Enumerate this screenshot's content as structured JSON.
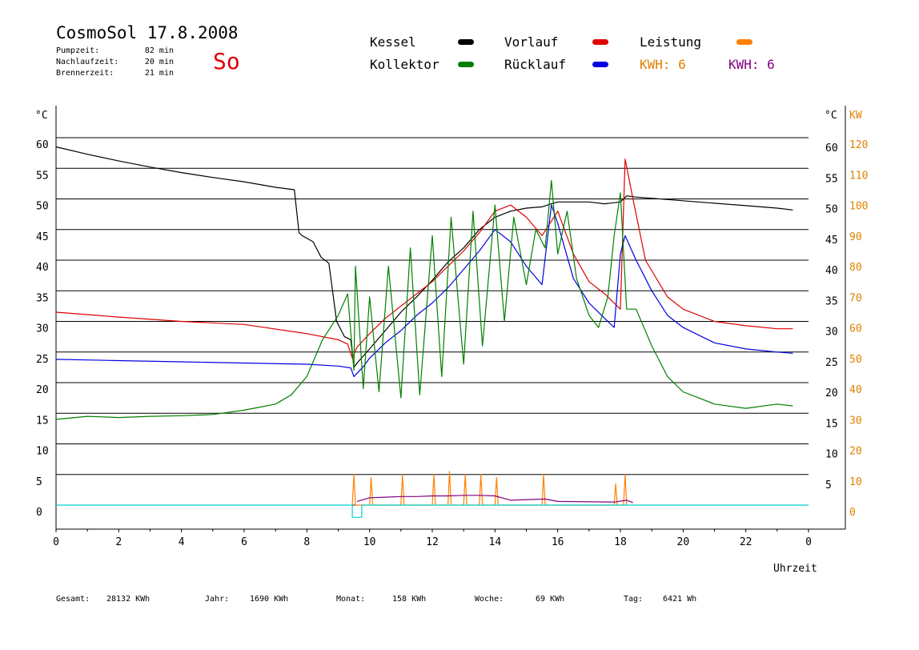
{
  "header": {
    "title": "CosmoSol 17.8.2008",
    "day": "So",
    "pump_label": "Pumpzeit:",
    "pump_value": "82 min",
    "nachlauf_label": "Nachlaufzeit:",
    "nachlauf_value": "20 min",
    "brenner_label": "Brennerzeit:",
    "brenner_value": "21 min"
  },
  "legend": {
    "kessel": "Kessel",
    "kollektor": "Kollektor",
    "vorlauf": "Vorlauf",
    "ruecklauf": "Rücklauf",
    "leistung": "Leistung",
    "kwh_orange": "KWH: 6",
    "kwh_purple": "KWH: 6",
    "colors": {
      "kessel": "#000000",
      "kollektor": "#008000",
      "vorlauf": "#e00000",
      "ruecklauf": "#0000e0",
      "leistung": "#ff8000",
      "kwh_purple": "#800080",
      "cyan": "#00d0d0"
    }
  },
  "footer": {
    "gesamt_label": "Gesamt:",
    "gesamt_value": "28132 KWh",
    "jahr_label": "Jahr:",
    "jahr_value": "1690 KWh",
    "monat_label": "Monat:",
    "monat_value": "158 KWh",
    "woche_label": "Woche:",
    "woche_value": "69 KWh",
    "tag_label": "Tag:",
    "tag_value": "6421 Wh"
  },
  "chart_data": {
    "type": "line",
    "xlabel": "Uhrzeit",
    "ylabel_left": "°C",
    "ylabel_right": "°C",
    "ylabel_right2": "KW",
    "xlim": [
      0,
      24
    ],
    "ylim": [
      0,
      60
    ],
    "y2lim": [
      0,
      120
    ],
    "grid": true,
    "x_ticks": [
      "0",
      "2",
      "4",
      "6",
      "8",
      "10",
      "12",
      "14",
      "16",
      "18",
      "20",
      "22",
      "0"
    ],
    "y_ticks": [
      "0",
      "5",
      "10",
      "15",
      "20",
      "25",
      "30",
      "35",
      "40",
      "45",
      "50",
      "55",
      "60"
    ],
    "y2_ticks": [
      "0",
      "10",
      "20",
      "30",
      "40",
      "50",
      "60",
      "70",
      "80",
      "90",
      "100",
      "110",
      "120"
    ],
    "series": [
      {
        "name": "Kessel",
        "color": "#000000",
        "x": [
          0,
          1,
          2,
          3,
          4,
          5,
          6,
          7,
          7.6,
          7.75,
          7.85,
          8.2,
          8.45,
          8.7,
          8.95,
          9.2,
          9.4,
          9.5,
          9.6,
          10,
          10.5,
          11,
          11.5,
          12,
          12.5,
          13,
          13.5,
          14,
          14.5,
          15,
          15.5,
          15.8,
          16,
          17,
          17.5,
          18,
          18.2,
          18.5,
          19,
          20,
          21,
          22,
          23,
          23.5
        ],
        "y": [
          58.5,
          57.3,
          56.2,
          55.2,
          54.3,
          53.5,
          52.8,
          51.9,
          51.5,
          44.5,
          44,
          43,
          40.5,
          39.5,
          30,
          27.5,
          27,
          22.5,
          23.2,
          25.5,
          28.5,
          31.5,
          34,
          36.7,
          39.7,
          42,
          45,
          47,
          48,
          48.5,
          48.7,
          49.2,
          49.5,
          49.5,
          49.2,
          49.5,
          50.5,
          50.3,
          50.1,
          49.7,
          49.3,
          48.9,
          48.5,
          48.2
        ]
      },
      {
        "name": "Vorlauf",
        "color": "#e00000",
        "x": [
          0,
          2,
          4,
          6,
          8,
          9,
          9.3,
          9.45,
          9.6,
          10,
          10.5,
          11,
          11.5,
          12,
          12.5,
          13,
          13.5,
          14,
          14.5,
          15,
          15.5,
          16,
          16.5,
          17,
          17.5,
          18,
          18.15,
          18.4,
          18.8,
          19.5,
          20,
          21,
          22,
          23,
          23.5
        ],
        "y": [
          31.5,
          30.7,
          30,
          29.5,
          28,
          27,
          26.3,
          24,
          25.8,
          28,
          30.5,
          32.5,
          34.5,
          36.5,
          39,
          41.5,
          44.5,
          48,
          49,
          47,
          44,
          48,
          41,
          36.5,
          34.5,
          32,
          56.5,
          50,
          40,
          34,
          32,
          30,
          29.3,
          28.8,
          28.8
        ]
      },
      {
        "name": "Rücklauf",
        "color": "#0000e0",
        "x": [
          0,
          2,
          4,
          6,
          8,
          9,
          9.4,
          9.5,
          9.8,
          10,
          10.5,
          11,
          11.5,
          12,
          12.5,
          13,
          13.5,
          14,
          14.5,
          15,
          15.5,
          15.8,
          16,
          16.5,
          17,
          17.5,
          17.8,
          18,
          18.15,
          18.5,
          19,
          19.5,
          20,
          21,
          22,
          23,
          23.5
        ],
        "y": [
          23.8,
          23.6,
          23.4,
          23.2,
          23,
          22.7,
          22.4,
          21,
          22.6,
          24,
          26.5,
          28.5,
          31,
          33,
          35.5,
          38.5,
          41.5,
          45,
          43,
          39,
          36,
          49,
          46,
          37,
          33,
          30.5,
          29,
          41,
          44,
          40,
          35,
          31,
          29,
          26.5,
          25.5,
          25,
          24.8
        ]
      },
      {
        "name": "Kollektor",
        "color": "#008000",
        "x": [
          0,
          1,
          2,
          3,
          4,
          5,
          6,
          6.5,
          7,
          7.5,
          8,
          8.5,
          9,
          9.3,
          9.5,
          9.55,
          9.8,
          10,
          10.3,
          10.6,
          11,
          11.3,
          11.6,
          12,
          12.3,
          12.6,
          13,
          13.3,
          13.6,
          14,
          14.3,
          14.6,
          15,
          15.3,
          15.6,
          15.8,
          16,
          16.3,
          16.6,
          17,
          17.3,
          17.6,
          17.8,
          18,
          18.2,
          18.5,
          19,
          19.5,
          20,
          20.5,
          21,
          22,
          23,
          23.5
        ],
        "y": [
          14,
          14.5,
          14.3,
          14.5,
          14.6,
          14.8,
          15.5,
          16,
          16.5,
          18,
          21,
          27,
          31,
          34.5,
          22,
          39,
          19,
          34,
          18.5,
          39,
          17.5,
          42,
          18,
          44,
          21,
          47,
          23,
          48,
          26,
          49,
          30,
          47,
          36,
          45,
          42,
          53,
          41,
          48,
          37,
          31,
          29,
          34,
          44,
          51,
          32,
          32,
          26,
          21,
          18.5,
          17.5,
          16.5,
          15.8,
          16.5,
          16.2
        ]
      },
      {
        "name": "Leistung",
        "color": "#ff8000",
        "x": [
          9.45,
          9.5,
          9.55,
          10,
          10.05,
          10.1,
          11,
          11.05,
          11.1,
          12,
          12.05,
          12.1,
          12.5,
          12.55,
          12.6,
          13,
          13.05,
          13.1,
          13.5,
          13.55,
          13.6,
          14,
          14.05,
          14.1,
          15.5,
          15.55,
          15.6,
          17.8,
          17.85,
          17.9,
          18.1,
          18.15,
          18.2
        ],
        "y": [
          0,
          10,
          0,
          0,
          9,
          0,
          0,
          10,
          0,
          0,
          10,
          0,
          0,
          11,
          0,
          0,
          10,
          0,
          0,
          10,
          0,
          0,
          9,
          0,
          0,
          10,
          0,
          0,
          7,
          0,
          0,
          10,
          0
        ]
      },
      {
        "name": "KWH",
        "color": "#800080",
        "x": [
          9.6,
          10,
          10.5,
          11,
          11.5,
          12,
          12.5,
          13,
          13.5,
          14,
          14.5,
          15.6,
          16,
          17.8,
          18.2,
          18.4
        ],
        "y": [
          0.6,
          1.2,
          1.3,
          1.4,
          1.4,
          1.5,
          1.5,
          1.6,
          1.6,
          1.5,
          0.8,
          1.0,
          0.6,
          0.5,
          0.8,
          0.4
        ]
      },
      {
        "name": "Brenner",
        "color": "#00d0d0",
        "x": [
          0,
          9.45,
          9.45,
          9.75,
          9.75,
          24
        ],
        "y": [
          0,
          0,
          -2,
          -2,
          0,
          0
        ]
      }
    ]
  }
}
